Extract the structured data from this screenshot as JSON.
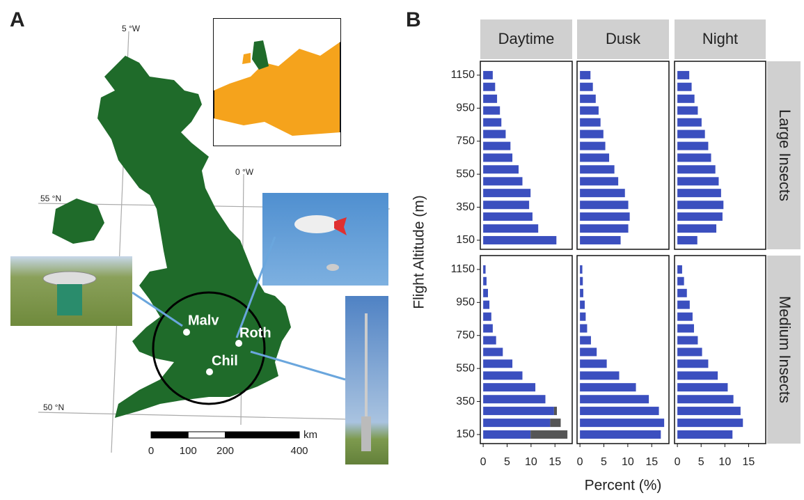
{
  "panel_a": {
    "label": "A",
    "lon_labels": [
      "5 °W",
      "0 °W"
    ],
    "lat_labels": [
      "55 °N",
      "50 °N"
    ],
    "sites": [
      "Malv",
      "Roth",
      "Chil"
    ],
    "scale_bar": {
      "unit": "km",
      "ticks": [
        0,
        100,
        200,
        400
      ]
    }
  },
  "chart_data": {
    "type": "bar",
    "panel_label": "B",
    "xlabel": "Percent (%)",
    "ylabel": "Flight Altitude (m)",
    "columns": [
      "Daytime",
      "Dusk",
      "Night"
    ],
    "rows": [
      "Large Insects",
      "Medium Insects"
    ],
    "altitudes": [
      150,
      221,
      293,
      364,
      436,
      507,
      579,
      650,
      721,
      793,
      864,
      936,
      1007,
      1079,
      1150
    ],
    "xlim": [
      -0.6,
      18.6
    ],
    "xticks": [
      0,
      5,
      10,
      15
    ],
    "ylim": [
      95,
      1234
    ],
    "yticks": [
      150,
      350,
      550,
      750,
      950,
      1150
    ],
    "panels": [
      [
        {
          "series": [
            {
              "color": "#3b4fbf",
              "values": [
                15.3,
                11.5,
                10.3,
                9.6,
                9.9,
                8.2,
                7.4,
                6.1,
                5.7,
                4.7,
                3.8,
                3.5,
                2.9,
                2.5,
                2.0
              ]
            }
          ]
        },
        {
          "series": [
            {
              "color": "#3b4fbf",
              "values": [
                8.5,
                10.1,
                10.4,
                10.1,
                9.4,
                8.0,
                7.2,
                6.1,
                5.3,
                4.9,
                4.3,
                3.9,
                3.3,
                2.7,
                2.2
              ]
            }
          ]
        },
        {
          "series": [
            {
              "color": "#3b4fbf",
              "values": [
                4.2,
                8.2,
                9.5,
                9.7,
                9.2,
                8.7,
                8.0,
                7.1,
                6.5,
                5.8,
                5.1,
                4.3,
                3.6,
                3.0,
                2.5
              ]
            }
          ]
        }
      ],
      [
        {
          "series": [
            {
              "color": "#3b4fbf",
              "values": [
                9.9,
                14.0,
                14.8,
                13.0,
                10.9,
                8.2,
                6.1,
                4.1,
                2.7,
                2.0,
                1.7,
                1.3,
                1.0,
                0.7,
                0.5
              ]
            },
            {
              "color": "#555555",
              "values": [
                7.7,
                2.2,
                0.6,
                null,
                null,
                null,
                null,
                null,
                null,
                null,
                null,
                null,
                null,
                null,
                null
              ]
            }
          ]
        },
        {
          "series": [
            {
              "color": "#3b4fbf",
              "values": [
                16.9,
                17.6,
                16.5,
                14.4,
                11.7,
                8.2,
                5.6,
                3.5,
                2.3,
                1.5,
                1.2,
                1.0,
                0.7,
                0.6,
                0.5
              ]
            }
          ]
        },
        {
          "series": [
            {
              "color": "#3b4fbf",
              "values": [
                11.6,
                13.8,
                13.3,
                11.8,
                10.6,
                8.5,
                6.5,
                5.2,
                4.3,
                3.5,
                3.2,
                2.6,
                2.0,
                1.4,
                1.0
              ]
            }
          ]
        }
      ]
    ]
  }
}
